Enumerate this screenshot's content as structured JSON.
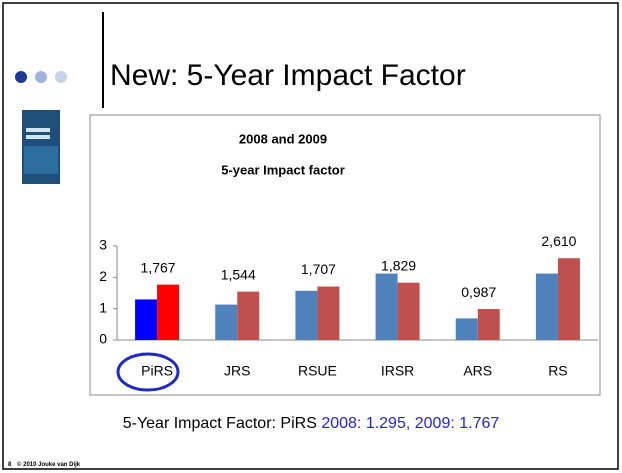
{
  "slide": {
    "title": "New: 5-Year Impact Factor",
    "caption": {
      "lead": "5-Year Impact Factor: PiRS",
      "highlight": "2008: 1.295, 2009: 1.767"
    },
    "footer": {
      "page": "8",
      "credit": "© 2010 Jouke van Dijk"
    }
  },
  "chart_data": {
    "type": "bar",
    "title": [
      "2008 and 2009",
      "5-year Impact factor"
    ],
    "categories": [
      "PiRS",
      "JRS",
      "RSUE",
      "IRSR",
      "ARS",
      "RS"
    ],
    "series": [
      {
        "color": "#4f81bd",
        "colors": [
          "#0000ff",
          "#4f81bd",
          "#4f81bd",
          "#4f81bd",
          "#4f81bd",
          "#4f81bd"
        ],
        "values": [
          1.295,
          1.13,
          1.57,
          2.12,
          0.69,
          2.12
        ]
      },
      {
        "color": "#c0504d",
        "colors": [
          "#ff0000",
          "#c0504d",
          "#c0504d",
          "#c0504d",
          "#c0504d",
          "#c0504d"
        ],
        "values": [
          1.767,
          1.544,
          1.707,
          1.829,
          0.987,
          2.61
        ],
        "value_labels": [
          "1,767",
          "1,544",
          "1,707",
          "1,829",
          "0,987",
          "2,610"
        ]
      }
    ],
    "ylim": [
      0,
      3
    ],
    "yticks": [
      0,
      1,
      2,
      3
    ],
    "grid": false
  }
}
